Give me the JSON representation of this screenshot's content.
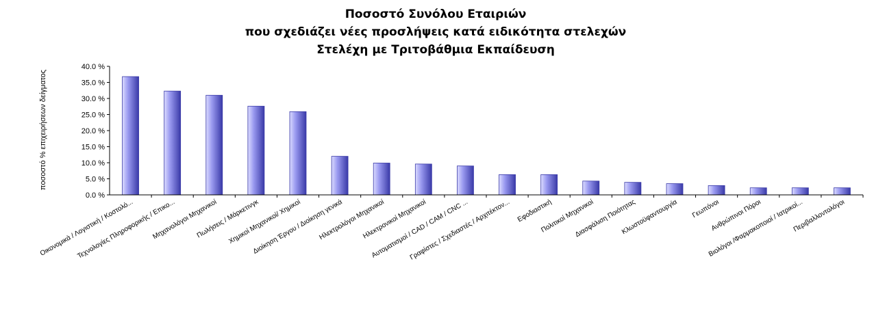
{
  "chart_data": {
    "type": "bar",
    "title": [
      "Ποσοστό Συνόλου Εταιριών",
      "που σχεδιάζει νέες προσλήψεις κατά ειδικότητα στελεχών",
      "Στελέχη με Τριτοβάθμια Εκπαίδευση"
    ],
    "ylabel": "ποσοστό % επιχειρήσεων δείγματος",
    "xlabel": "",
    "ylim": [
      0,
      40
    ],
    "yticks": [
      "0.0 %",
      "5.0 %",
      "10.0 %",
      "15.0 %",
      "20.0 %",
      "25.0 %",
      "30.0 %",
      "35.0 %",
      "40.0 %"
    ],
    "categories": [
      "Οικονομικά / Λογιστική / Κοστολό...",
      "Τεχνολογίες Πληροφορικής / Επικο...",
      "Μηχανολόγοι Μηχανικοί",
      "Πωλήσεις / Μάρκετινγκ",
      "Χημικοί Μηχανικοί/ Χημικοί",
      "Διοίκηση Έργου / Διοίκηση γενικά",
      "Ηλεκτρολόγοι Μηχανικοί",
      "Ηλεκτρονικοί Μηχανικοί",
      "Αυτοματισμοί / CAD / CAM / CNC ...",
      "Γραφίστες / Σχεδιαστές / Αρχιτέκτον...",
      "Εφοδιαστική",
      "Πολιτικοί Μηχανικοί",
      "Διασφάλιση Ποιότητας",
      "Κλωστοϋφαντουργία",
      "Γεωπόνοι",
      "Ανθρώπινοι Πόροι",
      "Βιολόγοι /Φαρμακοποιοί / Ιατρικοί...",
      "Περιβαλλοντολόγοι"
    ],
    "values": [
      36.8,
      32.3,
      31.0,
      27.6,
      25.9,
      12.0,
      9.9,
      9.6,
      9.0,
      6.3,
      6.3,
      4.3,
      3.9,
      3.5,
      2.9,
      2.2,
      2.2,
      2.2
    ],
    "colors": {
      "bar_face": "#9a9af0",
      "bar_light": "#dcdcff",
      "bar_dark": "#3a3aa8",
      "axis": "#000000"
    },
    "grid": false,
    "legend": "none"
  }
}
